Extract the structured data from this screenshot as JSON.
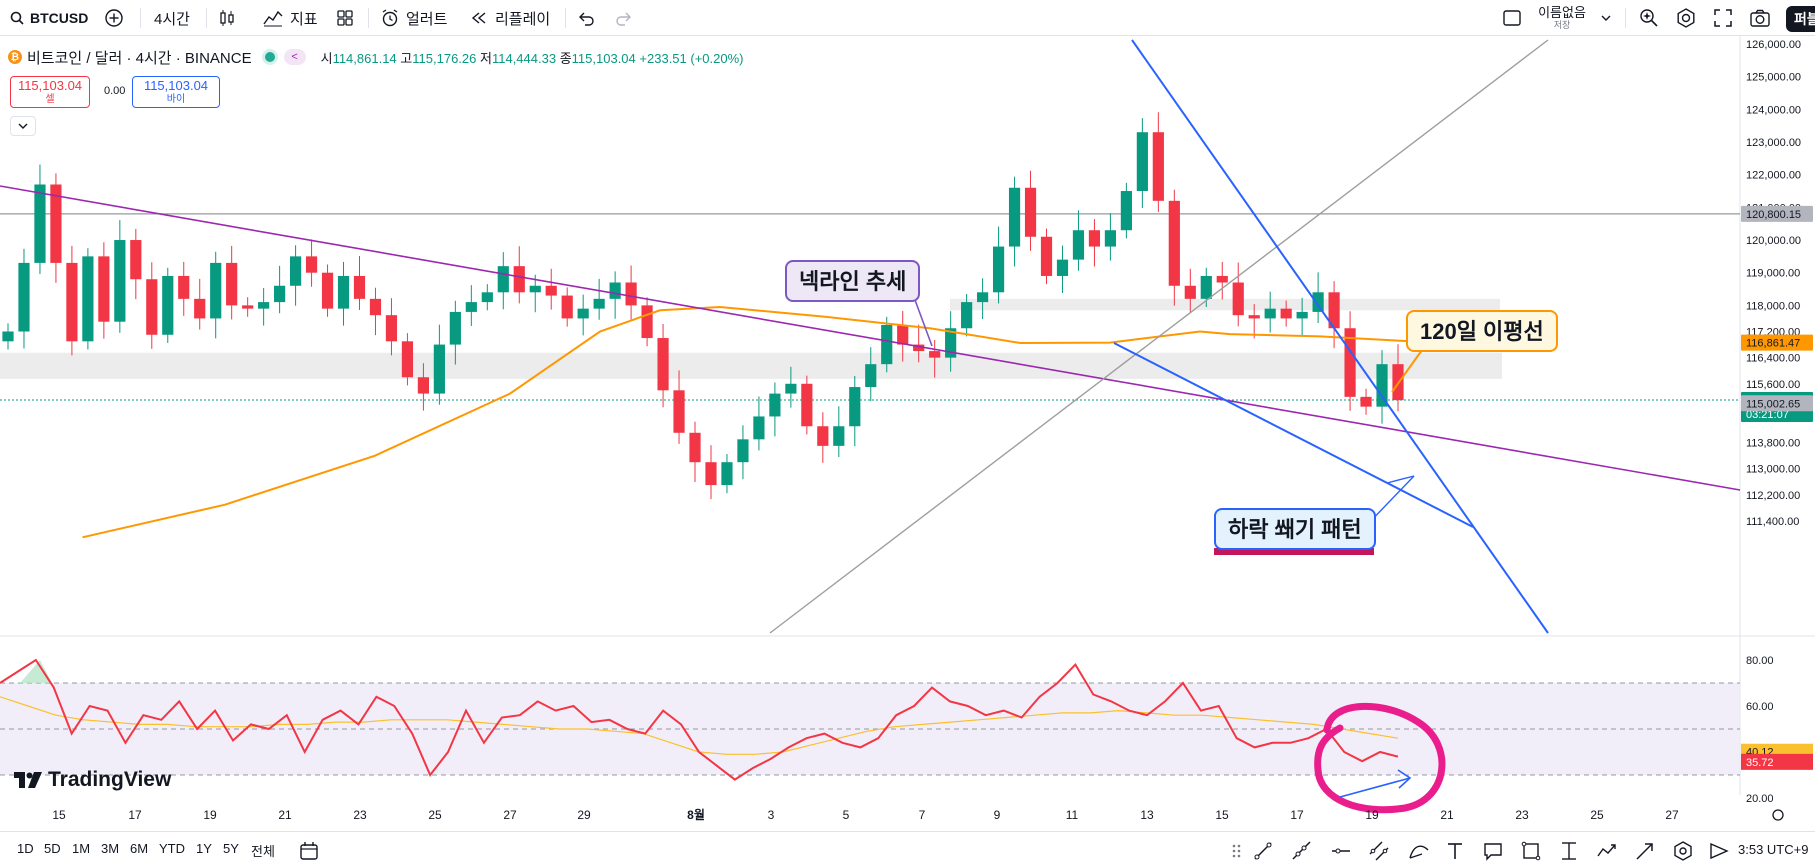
{
  "toolbar": {
    "symbol": "BTCUSD",
    "interval": "4시간",
    "indicators_label": "지표",
    "alert_label": "얼러트",
    "replay_label": "리플레이",
    "layout_name": "이름없음",
    "save_label": "저장",
    "publish_label": "퍼블"
  },
  "legend": {
    "title": "비트코인 / 달러 · 4시간 · BINANCE",
    "coin_glyph": "₿",
    "open_label": "시",
    "open": "114,861.14",
    "high_label": "고",
    "high": "115,176.26",
    "low_label": "저",
    "low": "114,444.33",
    "close_label": "종",
    "close": "115,103.04",
    "change": "+233.51 (+0.20%)"
  },
  "trade": {
    "sell_price": "115,103.04",
    "sell_label": "셀",
    "spread": "0.00",
    "buy_price": "115,103.04",
    "buy_label": "바이"
  },
  "annotations": {
    "neckline": "넥라인 추세",
    "ma120": "120일 이평선",
    "wedge": "하락 쐐기 패턴"
  },
  "brand": "TradingView",
  "bottom": {
    "ranges": [
      "1D",
      "5D",
      "1M",
      "3M",
      "6M",
      "YTD",
      "1Y",
      "5Y",
      "전체"
    ],
    "clock": "3:53 UTC+9"
  },
  "colors": {
    "up": "#089981",
    "down": "#f23645",
    "ma": "#ff9800",
    "neckline": "#9c27b0",
    "wedge": "#2962ff",
    "rsi": "#f23645",
    "rsi_ma": "#fbc02d",
    "circle": "#e91e8c"
  },
  "chart_data": [
    {
      "type": "candlestick",
      "title": "비트코인 / 달러 · 4시간 · BINANCE",
      "ylim": [
        111000,
        126200
      ],
      "price_ticks": [
        126000,
        125000,
        124000,
        123000,
        122000,
        121000,
        120000,
        119000,
        118000,
        117200,
        116400,
        115600,
        114800,
        113800,
        113000,
        112200,
        111400
      ],
      "price_tick_labels": [
        "126,000.00",
        "125,000.00",
        "124,000.00",
        "123,000.00",
        "122,000.00",
        "121,000.00",
        "120,000.00",
        "119,000.00",
        "118,000.00",
        "117,200.00",
        "116,400.00",
        "115,600.00",
        "114,800.00",
        "113,800.00",
        "113,000.00",
        "112,200.00",
        "111,400.00"
      ],
      "price_labels": [
        {
          "value": 120800.15,
          "text": "120,800.15",
          "kind": "line"
        },
        {
          "value": 116861.47,
          "text": "116,861.47",
          "kind": "ma"
        },
        {
          "value": 115103.04,
          "text": "115,103.04",
          "sub": "03:21:07",
          "kind": "last"
        },
        {
          "value": 115002.65,
          "text": "115,002.65",
          "kind": "grey"
        }
      ],
      "x_ticks": [
        "15",
        "17",
        "19",
        "21",
        "23",
        "25",
        "27",
        "29",
        "8월",
        "3",
        "5",
        "7",
        "9",
        "11",
        "13",
        "15",
        "17",
        "19",
        "21",
        "23",
        "25",
        "27"
      ],
      "close_path": [
        117200,
        119300,
        121700,
        119300,
        116900,
        119500,
        117500,
        120000,
        118800,
        117100,
        118900,
        118200,
        117600,
        119300,
        118000,
        117900,
        118100,
        118600,
        119500,
        119000,
        117900,
        118900,
        118200,
        117700,
        116900,
        115800,
        115300,
        116800,
        117800,
        118100,
        118400,
        119200,
        118400,
        118600,
        118300,
        117600,
        117900,
        118200,
        118700,
        118000,
        117000,
        115400,
        114100,
        113200,
        112500,
        113200,
        113900,
        114600,
        115300,
        115600,
        114300,
        113700,
        114300,
        115500,
        116200,
        117400,
        116800,
        116600,
        116400,
        117300,
        118100,
        118400,
        119800,
        121600,
        120100,
        118900,
        119400,
        120300,
        119800,
        120300,
        121500,
        123300,
        121200,
        118600,
        118200,
        118900,
        118700,
        117700,
        117600,
        117900,
        117600,
        117800,
        118400,
        117300,
        115200,
        114900,
        116200,
        115100
      ],
      "horizontal_line": 120800.15,
      "zones": [
        [
          117850,
          118200
        ],
        [
          115750,
          116550
        ]
      ],
      "ma120": [
        [
          0.055,
          110900
        ],
        [
          0.15,
          111900
        ],
        [
          0.25,
          113400
        ],
        [
          0.34,
          115300
        ],
        [
          0.4,
          117200
        ],
        [
          0.44,
          117850
        ],
        [
          0.48,
          117950
        ],
        [
          0.55,
          117650
        ],
        [
          0.62,
          117300
        ],
        [
          0.68,
          116850
        ],
        [
          0.74,
          116860
        ],
        [
          0.8,
          117200
        ],
        [
          0.82,
          117120
        ],
        [
          0.88,
          117050
        ],
        [
          0.94,
          116900
        ]
      ]
    },
    {
      "type": "line",
      "title": "RSI",
      "ylim": [
        20,
        85
      ],
      "tick_labels": [
        "80.00",
        "60.00",
        "20.00"
      ],
      "tick_values": [
        80,
        60,
        20
      ],
      "band": [
        30,
        70
      ],
      "midline": 50,
      "rsi": [
        70,
        75,
        80,
        68,
        48,
        60,
        58,
        44,
        56,
        54,
        62,
        50,
        58,
        45,
        52,
        50,
        56,
        40,
        54,
        58,
        52,
        64,
        60,
        48,
        30,
        40,
        58,
        44,
        55,
        56,
        62,
        58,
        60,
        53,
        54,
        50,
        48,
        58,
        52,
        40,
        34,
        28,
        33,
        37,
        42,
        46,
        48,
        44,
        42,
        46,
        56,
        60,
        68,
        62,
        60,
        56,
        58,
        55,
        64,
        70,
        78,
        65,
        62,
        58,
        56,
        62,
        70,
        58,
        60,
        46,
        42,
        44,
        44,
        46,
        50,
        40,
        36,
        40,
        38
      ],
      "rsi_ma": [
        64,
        60,
        56,
        54,
        53,
        52,
        52,
        51,
        51,
        51,
        52,
        52,
        53,
        53,
        54,
        54,
        54,
        53,
        52,
        51,
        50,
        50,
        49,
        48,
        44,
        40,
        39,
        39,
        40,
        43,
        46,
        49,
        51,
        52,
        53,
        54,
        55,
        56,
        57,
        57,
        58,
        57,
        56,
        56,
        55,
        54,
        53,
        52,
        50,
        48,
        46
      ],
      "values_right": [
        {
          "value": 40.12,
          "text": "40.12",
          "kind": "ma"
        },
        {
          "value": 35.72,
          "text": "35.72",
          "kind": "rsi"
        }
      ]
    }
  ]
}
